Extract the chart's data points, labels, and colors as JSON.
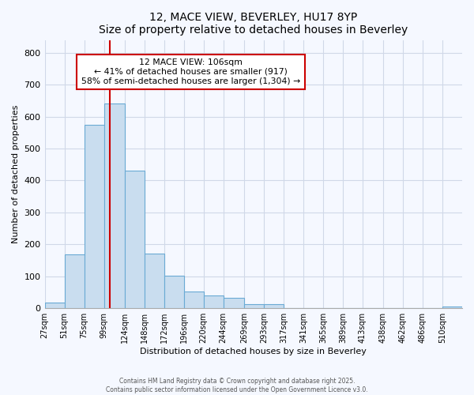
{
  "title": "12, MACE VIEW, BEVERLEY, HU17 8YP",
  "subtitle": "Size of property relative to detached houses in Beverley",
  "xlabel": "Distribution of detached houses by size in Beverley",
  "ylabel": "Number of detached properties",
  "bar_color": "#c9ddef",
  "bar_edge_color": "#6aaad4",
  "background_color": "#f5f8ff",
  "grid_color": "#d0d8e8",
  "categories": [
    "27sqm",
    "51sqm",
    "75sqm",
    "99sqm",
    "124sqm",
    "148sqm",
    "172sqm",
    "196sqm",
    "220sqm",
    "244sqm",
    "269sqm",
    "293sqm",
    "317sqm",
    "341sqm",
    "365sqm",
    "389sqm",
    "413sqm",
    "438sqm",
    "462sqm",
    "486sqm",
    "510sqm"
  ],
  "values": [
    18,
    168,
    575,
    640,
    430,
    170,
    103,
    52,
    40,
    33,
    12,
    12,
    0,
    0,
    0,
    0,
    0,
    0,
    0,
    0,
    5
  ],
  "bin_edges": [
    27,
    51,
    75,
    99,
    124,
    148,
    172,
    196,
    220,
    244,
    269,
    293,
    317,
    341,
    365,
    389,
    413,
    438,
    462,
    486,
    510,
    534
  ],
  "property_size": 106,
  "property_label": "12 MACE VIEW: 106sqm",
  "annotation_line1": "← 41% of detached houses are smaller (917)",
  "annotation_line2": "58% of semi-detached houses are larger (1,304) →",
  "annotation_box_color": "#ffffff",
  "annotation_box_edge": "#cc0000",
  "red_line_color": "#cc0000",
  "ylim": [
    0,
    840
  ],
  "yticks": [
    0,
    100,
    200,
    300,
    400,
    500,
    600,
    700,
    800
  ],
  "footer1": "Contains HM Land Registry data © Crown copyright and database right 2025.",
  "footer2": "Contains public sector information licensed under the Open Government Licence v3.0."
}
